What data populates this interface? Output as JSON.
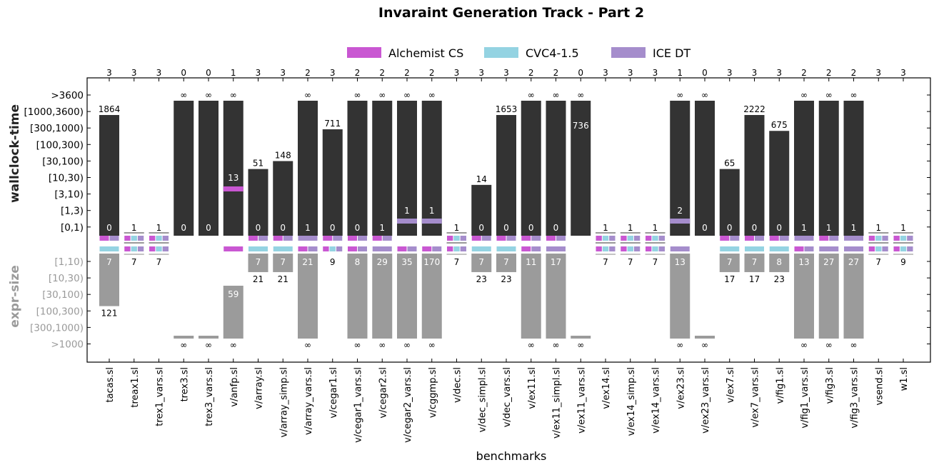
{
  "chart_data": {
    "type": "bar",
    "title": "Invaraint Generation Track - Part 2",
    "xlabel": "benchmarks",
    "ylabel_top": "wallclock-time",
    "ylabel_bottom": "expr-size",
    "legend": [
      {
        "name": "Alchemist CS",
        "color": "#c957d2"
      },
      {
        "name": "CVC4-1.5",
        "color": "#94d3e2"
      },
      {
        "name": "ICE DT",
        "color": "#a58dcc"
      }
    ],
    "time_ticks": [
      ">3600",
      "[1000,3600)",
      "[300,1000)",
      "[100,300)",
      "[30,100)",
      "[10,30)",
      "[3,10)",
      "[1,3)",
      "[0,1)"
    ],
    "size_ticks": [
      "[1,10)",
      "[10,30)",
      "[30,100)",
      "[100,300)",
      "[300,1000)",
      ">1000"
    ],
    "infinity_symbol": "∞",
    "colors": {
      "time_bar": "#333333",
      "size_bar": "#9b9b9b",
      "frame": "#000000"
    },
    "benchmarks": [
      {
        "name": "tacas.sl",
        "count": "3",
        "time_level": 7.6,
        "time_label": "1864",
        "time_zero": "0",
        "solvers": [
          "A",
          "D"
        ],
        "solvers_b": [
          "C"
        ],
        "size_level": 3.4,
        "size_inner": "7",
        "size_label": "121"
      },
      {
        "name": "treax1.sl",
        "count": "3",
        "time_level": null,
        "time_label": "1",
        "time_zero": "",
        "solvers": [
          "A",
          "C",
          "D"
        ],
        "solvers_b": [
          "A",
          "C",
          "D"
        ],
        "size_level": null,
        "size_inner": "",
        "size_label": "7"
      },
      {
        "name": "trex1_vars.sl",
        "count": "3",
        "time_level": null,
        "time_label": "1",
        "time_zero": "",
        "solvers": [
          "A",
          "C",
          "D"
        ],
        "solvers_b": [
          "A",
          "C",
          "D"
        ],
        "size_level": null,
        "size_inner": "",
        "size_label": "7"
      },
      {
        "name": "trex3.sl",
        "count": "0",
        "time_level": 8.5,
        "time_label": "∞",
        "time_zero": "0",
        "solvers": [],
        "solvers_b": [],
        "size_level": 5.5,
        "size_inner": "",
        "size_label": "∞",
        "size_flat": true
      },
      {
        "name": "trex3_vars.sl",
        "count": "0",
        "time_level": 8.5,
        "time_label": "∞",
        "time_zero": "0",
        "solvers": [],
        "solvers_b": [],
        "size_level": 5.5,
        "size_inner": "",
        "size_label": "∞",
        "size_flat": true
      },
      {
        "name": "v/anfp.sl",
        "count": "1",
        "time_level": 8.5,
        "time_label": "∞",
        "time_zero": "",
        "float_label": "13",
        "solvers": [],
        "solvers_b": [
          "A"
        ],
        "size_level": 5.5,
        "size_inner": "59",
        "size_label": "∞",
        "size_from": 1.5
      },
      {
        "name": "v/array.sl",
        "count": "3",
        "time_level": 4.2,
        "time_label": "51",
        "time_zero": "0",
        "solvers": [
          "A",
          "D"
        ],
        "solvers_b": [
          "C"
        ],
        "size_level": 1.2,
        "size_inner": "7",
        "size_label": "21"
      },
      {
        "name": "v/array_simp.sl",
        "count": "3",
        "time_level": 4.7,
        "time_label": "148",
        "time_zero": "0",
        "solvers": [
          "A",
          "D"
        ],
        "solvers_b": [
          "C"
        ],
        "size_level": 1.2,
        "size_inner": "7",
        "size_label": "21"
      },
      {
        "name": "v/array_vars.sl",
        "count": "2",
        "time_level": 8.5,
        "time_label": "∞",
        "time_zero": "1",
        "solvers": [
          "D"
        ],
        "solvers_b": [
          "A",
          "D"
        ],
        "size_level": 5.5,
        "size_inner": "21",
        "size_label": "∞"
      },
      {
        "name": "v/cegar1.sl",
        "count": "3",
        "time_level": 6.7,
        "time_label": "711",
        "time_zero": "0",
        "solvers": [
          "A",
          "D"
        ],
        "solvers_b": [
          "A",
          "C",
          "D"
        ],
        "size_level": null,
        "size_inner": "",
        "size_label": "9"
      },
      {
        "name": "v/cegar1_vars.sl",
        "count": "2",
        "time_level": 8.5,
        "time_label": "∞",
        "time_zero": "0",
        "solvers": [
          "A",
          "D"
        ],
        "solvers_b": [
          "A",
          "D"
        ],
        "size_level": 5.5,
        "size_inner": "8",
        "size_label": "∞"
      },
      {
        "name": "v/cegar2.sl",
        "count": "2",
        "time_level": 8.5,
        "time_label": "∞",
        "time_zero": "1",
        "solvers": [
          "A",
          "D"
        ],
        "solvers_b": [
          "D"
        ],
        "size_level": 5.5,
        "size_inner": "29",
        "size_label": "∞"
      },
      {
        "name": "v/cegar2_vars.sl",
        "count": "2",
        "time_level": 8.5,
        "time_label": "∞",
        "time_zero": "",
        "float_time": "1",
        "solvers": [],
        "solvers_b": [
          "A",
          "D"
        ],
        "size_level": 5.5,
        "size_inner": "35",
        "size_label": "∞"
      },
      {
        "name": "v/cggmp.sl",
        "count": "2",
        "time_level": 8.5,
        "time_label": "∞",
        "time_zero": "",
        "float_time": "1",
        "solvers": [],
        "solvers_b": [
          "A",
          "D"
        ],
        "size_level": 5.5,
        "size_inner": "170",
        "size_label": "∞"
      },
      {
        "name": "v/dec.sl",
        "count": "3",
        "time_level": null,
        "time_label": "1",
        "time_zero": "",
        "solvers": [
          "A",
          "C",
          "D"
        ],
        "solvers_b": [
          "A",
          "C",
          "D"
        ],
        "size_level": null,
        "size_inner": "",
        "size_label": "7"
      },
      {
        "name": "v/dec_simpl.sl",
        "count": "3",
        "time_level": 3.2,
        "time_label": "14",
        "time_zero": "0",
        "solvers": [
          "A",
          "D"
        ],
        "solvers_b": [
          "C"
        ],
        "size_level": 1.2,
        "size_inner": "7",
        "size_label": "23"
      },
      {
        "name": "v/dec_vars.sl",
        "count": "3",
        "time_level": 7.6,
        "time_label": "1653",
        "time_zero": "0",
        "solvers": [
          "A",
          "D"
        ],
        "solvers_b": [
          "C"
        ],
        "size_level": 1.2,
        "size_inner": "7",
        "size_label": "23"
      },
      {
        "name": "v/ex11.sl",
        "count": "2",
        "time_level": 8.5,
        "time_label": "∞",
        "time_zero": "0",
        "solvers": [
          "A",
          "D"
        ],
        "solvers_b": [
          "A",
          "D"
        ],
        "size_level": 5.5,
        "size_inner": "11",
        "size_label": "∞"
      },
      {
        "name": "v/ex11_simpl.sl",
        "count": "2",
        "time_level": 8.5,
        "time_label": "∞",
        "time_zero": "0",
        "solvers": [
          "A",
          "D"
        ],
        "solvers_b": [
          "D"
        ],
        "size_level": 5.5,
        "size_inner": "17",
        "size_label": "∞"
      },
      {
        "name": "v/ex11_vars.sl",
        "count": "0",
        "time_level": 8.5,
        "time_label": "∞",
        "time_zero": "",
        "float_label": "736",
        "solvers": [],
        "solvers_b": [],
        "size_level": 5.5,
        "size_inner": "",
        "size_label": "∞",
        "size_flat": true
      },
      {
        "name": "v/ex14.sl",
        "count": "3",
        "time_level": null,
        "time_label": "1",
        "time_zero": "",
        "solvers": [
          "A",
          "C",
          "D"
        ],
        "solvers_b": [
          "A",
          "C",
          "D"
        ],
        "size_level": null,
        "size_inner": "",
        "size_label": "7"
      },
      {
        "name": "v/ex14_simp.sl",
        "count": "3",
        "time_level": null,
        "time_label": "1",
        "time_zero": "",
        "solvers": [
          "A",
          "C",
          "D"
        ],
        "solvers_b": [
          "A",
          "C",
          "D"
        ],
        "size_level": null,
        "size_inner": "",
        "size_label": "7"
      },
      {
        "name": "v/ex14_vars.sl",
        "count": "3",
        "time_level": null,
        "time_label": "1",
        "time_zero": "",
        "solvers": [
          "A",
          "C",
          "D"
        ],
        "solvers_b": [
          "A",
          "C",
          "D"
        ],
        "size_level": null,
        "size_inner": "",
        "size_label": "7"
      },
      {
        "name": "v/ex23.sl",
        "count": "1",
        "time_level": 8.5,
        "time_label": "∞",
        "time_zero": "",
        "float_time": "2",
        "solvers": [],
        "solvers_b": [
          "D"
        ],
        "size_level": 5.5,
        "size_inner": "13",
        "size_label": "∞"
      },
      {
        "name": "v/ex23_vars.sl",
        "count": "0",
        "time_level": 8.5,
        "time_label": "∞",
        "time_zero": "0",
        "solvers": [],
        "solvers_b": [],
        "size_level": 5.5,
        "size_inner": "",
        "size_label": "∞",
        "size_flat": true
      },
      {
        "name": "v/ex7.sl",
        "count": "3",
        "time_level": 4.2,
        "time_label": "65",
        "time_zero": "0",
        "solvers": [
          "A",
          "D"
        ],
        "solvers_b": [
          "C"
        ],
        "size_level": 1.2,
        "size_inner": "7",
        "size_label": "17"
      },
      {
        "name": "v/ex7_vars.sl",
        "count": "3",
        "time_level": 7.6,
        "time_label": "2222",
        "time_zero": "0",
        "solvers": [
          "A",
          "D"
        ],
        "solvers_b": [
          "C"
        ],
        "size_level": 1.2,
        "size_inner": "7",
        "size_label": "17"
      },
      {
        "name": "v/fig1.sl",
        "count": "3",
        "time_level": 6.6,
        "time_label": "675",
        "time_zero": "0",
        "solvers": [
          "A",
          "D"
        ],
        "solvers_b": [
          "C"
        ],
        "size_level": 1.2,
        "size_inner": "8",
        "size_label": "23"
      },
      {
        "name": "v/fig1_vars.sl",
        "count": "2",
        "time_level": 8.5,
        "time_label": "∞",
        "time_zero": "1",
        "solvers": [
          "D"
        ],
        "solvers_b": [
          "A",
          "D"
        ],
        "size_level": 5.5,
        "size_inner": "13",
        "size_label": "∞"
      },
      {
        "name": "v/fig3.sl",
        "count": "2",
        "time_level": 8.5,
        "time_label": "∞",
        "time_zero": "1",
        "solvers": [
          "A",
          "D"
        ],
        "solvers_b": [
          "D"
        ],
        "size_level": 5.5,
        "size_inner": "27",
        "size_label": "∞"
      },
      {
        "name": "v/fig3_vars.sl",
        "count": "2",
        "time_level": 8.5,
        "time_label": "∞",
        "time_zero": "1",
        "solvers": [
          "D"
        ],
        "solvers_b": [
          "D"
        ],
        "size_level": 5.5,
        "size_inner": "27",
        "size_label": "∞"
      },
      {
        "name": "vsend.sl",
        "count": "3",
        "time_level": null,
        "time_label": "1",
        "time_zero": "",
        "solvers": [
          "A",
          "C",
          "D"
        ],
        "solvers_b": [
          "A",
          "C",
          "D"
        ],
        "size_level": null,
        "size_inner": "",
        "size_label": "7"
      },
      {
        "name": "w1.sl",
        "count": "3",
        "time_level": null,
        "time_label": "1",
        "time_zero": "",
        "solvers": [
          "A",
          "C",
          "D"
        ],
        "solvers_b": [
          "A",
          "C",
          "D"
        ],
        "size_level": null,
        "size_inner": "",
        "size_label": "9"
      }
    ]
  }
}
